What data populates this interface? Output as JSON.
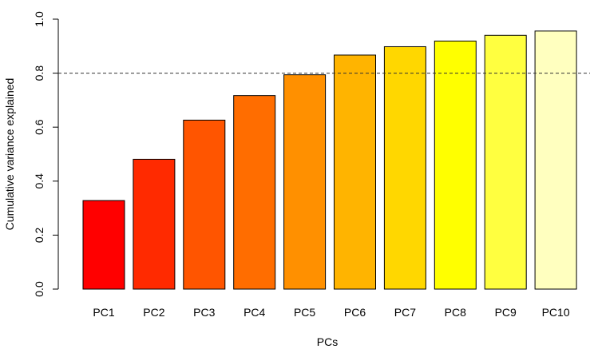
{
  "chart_data": {
    "type": "bar",
    "categories": [
      "PC1",
      "PC2",
      "PC3",
      "PC4",
      "PC5",
      "PC6",
      "PC7",
      "PC8",
      "PC9",
      "PC10"
    ],
    "values": [
      0.328,
      0.481,
      0.626,
      0.717,
      0.794,
      0.867,
      0.898,
      0.919,
      0.94,
      0.956
    ],
    "bar_colors": [
      "#FF0000",
      "#FF2A00",
      "#FF5500",
      "#FF6D00",
      "#FF9000",
      "#FFB400",
      "#FFD700",
      "#FFFF00",
      "#FFFF40",
      "#FFFFBF"
    ],
    "title": "",
    "xlabel": "PCs",
    "ylabel": "Cumulative variance explained",
    "ylim": [
      0,
      1
    ],
    "yticks": [
      "0.0",
      "0.2",
      "0.4",
      "0.6",
      "0.8",
      "1.0"
    ],
    "reference_line": {
      "value": 0.8,
      "style": "dashed",
      "color": "#333333"
    },
    "grid": false,
    "legend": "none"
  }
}
